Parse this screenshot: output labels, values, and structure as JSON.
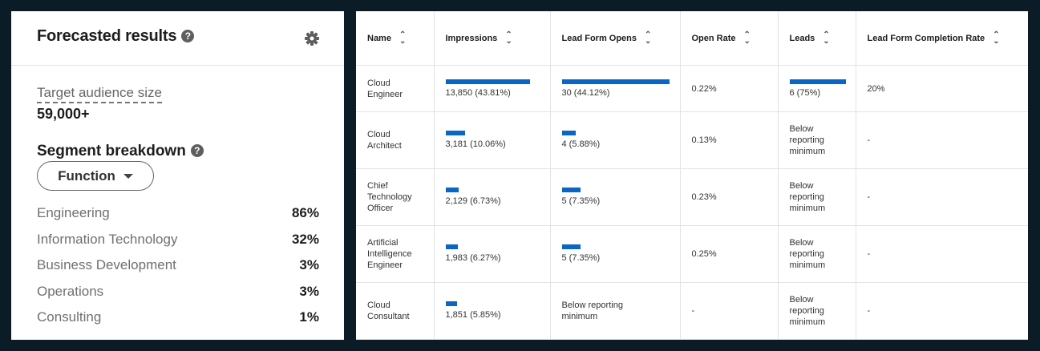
{
  "forecast": {
    "title": "Forecasted results",
    "audience_label": "Target audience size",
    "audience_value": "59,000+",
    "segment_title": "Segment breakdown",
    "function_button": "Function",
    "segments": [
      {
        "name": "Engineering",
        "pct": "86%"
      },
      {
        "name": "Information Technology",
        "pct": "32%"
      },
      {
        "name": "Business Development",
        "pct": "3%"
      },
      {
        "name": "Operations",
        "pct": "3%"
      },
      {
        "name": "Consulting",
        "pct": "1%"
      }
    ]
  },
  "table": {
    "headers": [
      "Name",
      "Impressions",
      "Lead Form Opens",
      "Open Rate",
      "Leads",
      "Lead Form Completion Rate"
    ],
    "rows": [
      {
        "name": "Cloud Engineer",
        "impressions": "13,850 (43.81%)",
        "impressions_share": 1.0,
        "opens": "30 (44.12%)",
        "opens_share": 1.0,
        "open_rate": "0.22%",
        "leads": "6 (75%)",
        "leads_share": 1.0,
        "completion": "20%"
      },
      {
        "name": "Cloud Architect",
        "impressions": "3,181 (10.06%)",
        "impressions_share": 0.23,
        "opens": "4 (5.88%)",
        "opens_share": 0.13,
        "open_rate": "0.13%",
        "leads": "Below reporting minimum",
        "leads_share": 0,
        "completion": "-"
      },
      {
        "name": "Chief Technology Officer",
        "impressions": "2,129 (6.73%)",
        "impressions_share": 0.15,
        "opens": "5 (7.35%)",
        "opens_share": 0.17,
        "open_rate": "0.23%",
        "leads": "Below reporting minimum",
        "leads_share": 0,
        "completion": "-"
      },
      {
        "name": "Artificial Intelligence Engineer",
        "impressions": "1,983 (6.27%)",
        "impressions_share": 0.14,
        "opens": "5 (7.35%)",
        "opens_share": 0.17,
        "open_rate": "0.25%",
        "leads": "Below reporting minimum",
        "leads_share": 0,
        "completion": "-"
      },
      {
        "name": "Cloud Consultant",
        "impressions": "1,851 (5.85%)",
        "impressions_share": 0.13,
        "opens": "Below reporting minimum",
        "opens_share": 0,
        "open_rate": "-",
        "leads": "Below reporting minimum",
        "leads_share": 0,
        "completion": "-"
      }
    ]
  },
  "colors": {
    "accent": "#0a66c2",
    "background": "#0b1c26"
  }
}
